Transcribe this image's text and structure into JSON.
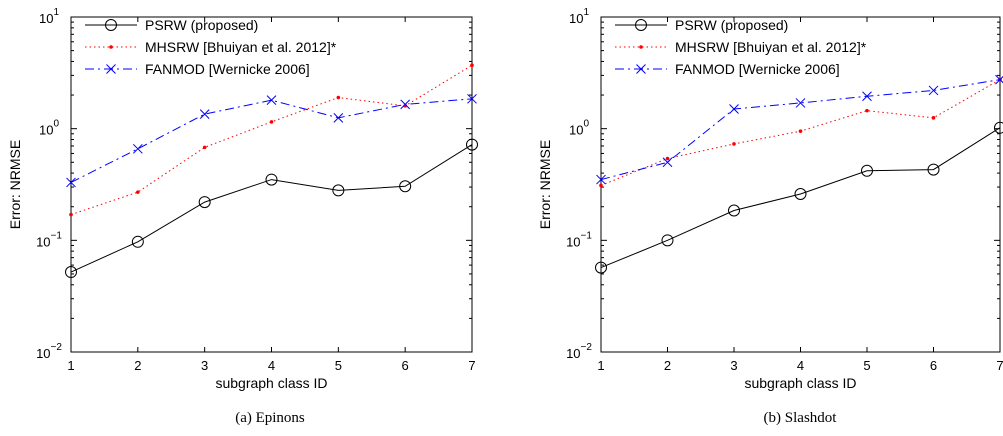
{
  "chart_data": [
    {
      "type": "line",
      "caption": "(a)  Epinons",
      "xlabel": "subgraph class ID",
      "ylabel": "Error: NRMSE",
      "yscale": "log",
      "ylim": [
        0.01,
        10
      ],
      "xlim": [
        1,
        7
      ],
      "x": [
        1,
        2,
        3,
        4,
        5,
        6,
        7
      ],
      "xticks": [
        "1",
        "2",
        "3",
        "4",
        "5",
        "6",
        "7"
      ],
      "yticks": [
        {
          "base": "10",
          "exp": "−2"
        },
        {
          "base": "10",
          "exp": "−1"
        },
        {
          "base": "10",
          "exp": "0"
        },
        {
          "base": "10",
          "exp": "1"
        }
      ],
      "legend_position": "top-left",
      "series": [
        {
          "name": "PSRW (proposed)",
          "color": "#000000",
          "marker": "circle",
          "values": [
            0.052,
            0.097,
            0.22,
            0.35,
            0.28,
            0.305,
            0.72
          ]
        },
        {
          "name": "MHSRW [Bhuiyan et al. 2012]*",
          "color": "#ff0000",
          "marker": "dot",
          "values": [
            0.17,
            0.27,
            0.68,
            1.15,
            1.9,
            1.6,
            3.7
          ]
        },
        {
          "name": "FANMOD [Wernicke 2006]",
          "color": "#0000ff",
          "marker": "x",
          "values": [
            0.33,
            0.66,
            1.35,
            1.8,
            1.25,
            1.65,
            1.85
          ]
        }
      ]
    },
    {
      "type": "line",
      "caption": "(b)  Slashdot",
      "xlabel": "subgraph class ID",
      "ylabel": "Error: NRMSE",
      "yscale": "log",
      "ylim": [
        0.01,
        10
      ],
      "xlim": [
        1,
        7
      ],
      "x": [
        1,
        2,
        3,
        4,
        5,
        6,
        7
      ],
      "xticks": [
        "1",
        "2",
        "3",
        "4",
        "5",
        "6",
        "7"
      ],
      "yticks": [
        {
          "base": "10",
          "exp": "−2"
        },
        {
          "base": "10",
          "exp": "−1"
        },
        {
          "base": "10",
          "exp": "0"
        },
        {
          "base": "10",
          "exp": "1"
        }
      ],
      "legend_position": "top-left",
      "series": [
        {
          "name": "PSRW (proposed)",
          "color": "#000000",
          "marker": "circle",
          "values": [
            0.057,
            0.1,
            0.185,
            0.26,
            0.42,
            0.43,
            1.02
          ]
        },
        {
          "name": "MHSRW [Bhuiyan et al. 2012]*",
          "color": "#ff0000",
          "marker": "dot",
          "values": [
            0.31,
            0.54,
            0.73,
            0.95,
            1.45,
            1.25,
            2.75
          ]
        },
        {
          "name": "FANMOD [Wernicke 2006]",
          "color": "#0000ff",
          "marker": "x",
          "values": [
            0.35,
            0.5,
            1.5,
            1.7,
            1.95,
            2.2,
            2.75
          ]
        }
      ]
    }
  ]
}
